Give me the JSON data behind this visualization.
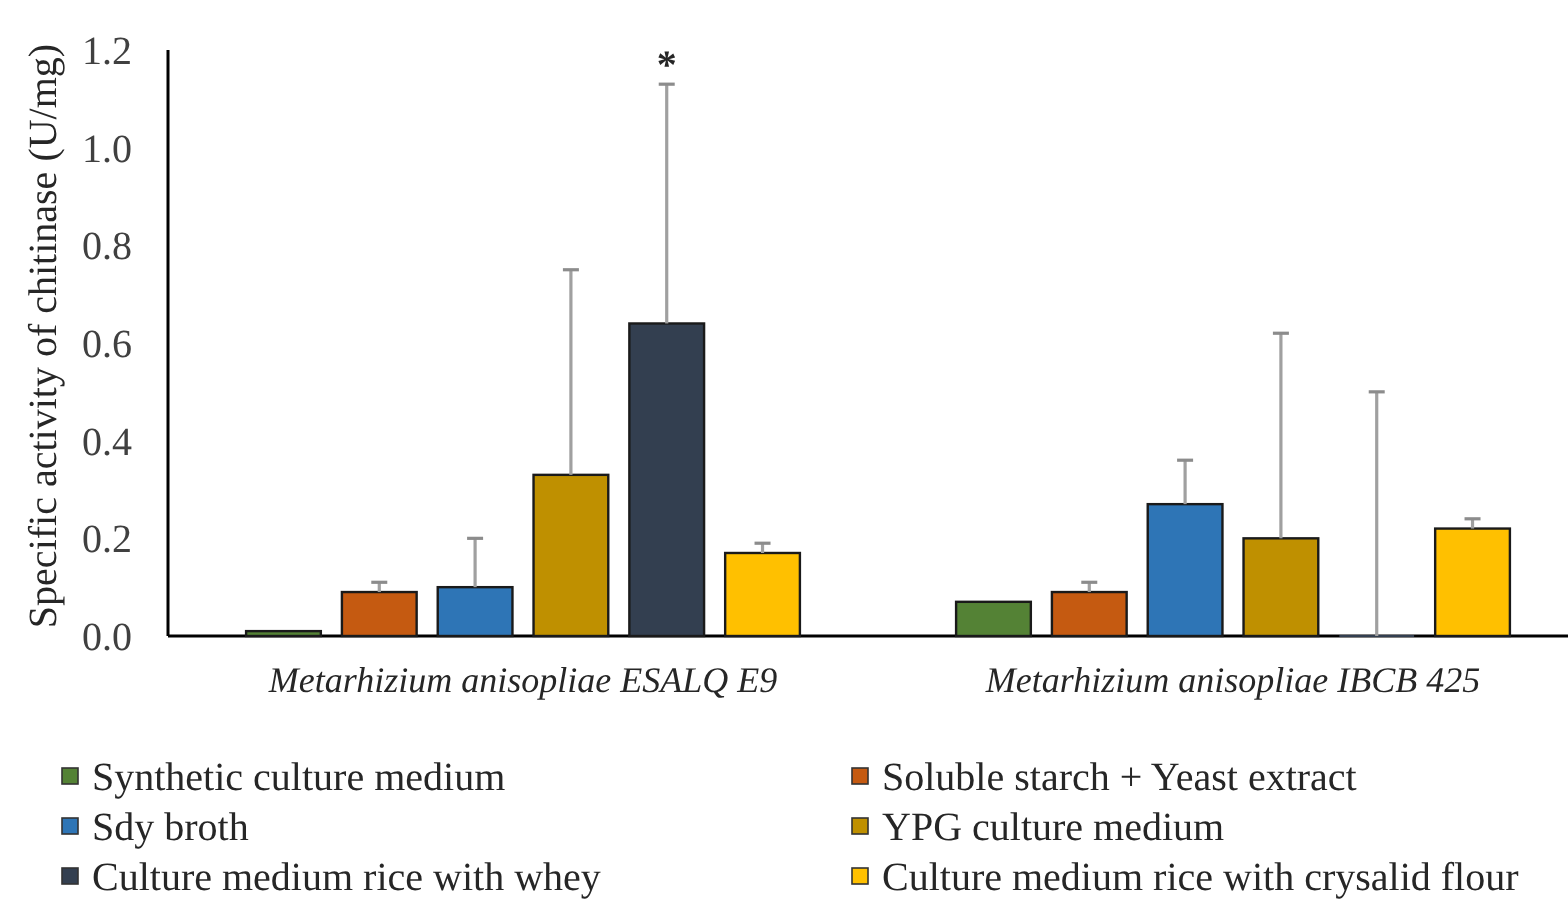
{
  "chart_data": {
    "type": "bar",
    "ylabel": "Specific activity of chitinase (U/mg)",
    "categories": [
      "Metarhizium anisopliae ESALQ E9",
      "Metarhizium anisopliae IBCB 425"
    ],
    "series": [
      {
        "name": "Synthetic culture medium",
        "color": "#548235",
        "values": [
          0.01,
          0.07
        ],
        "errors": [
          null,
          null
        ]
      },
      {
        "name": "Soluble starch + Yeast extract",
        "color": "#c55a11",
        "values": [
          0.09,
          0.09
        ],
        "errors": [
          [
            0.09,
            0.11
          ],
          [
            0.09,
            0.11
          ]
        ]
      },
      {
        "name": "Sdy broth",
        "color": "#2e75b6",
        "values": [
          0.1,
          0.27
        ],
        "errors": [
          [
            0.1,
            0.2
          ],
          [
            0.27,
            0.36
          ]
        ]
      },
      {
        "name": "YPG culture medium",
        "color": "#bf9000",
        "values": [
          0.33,
          0.2
        ],
        "errors": [
          [
            0.33,
            0.75
          ],
          [
            0.2,
            0.62
          ]
        ]
      },
      {
        "name": "Culture medium rice with whey",
        "color": "#333f50",
        "values": [
          0.64,
          0
        ],
        "errors": [
          [
            0.64,
            1.13
          ],
          [
            0,
            0.5
          ]
        ]
      },
      {
        "name": "Culture medium rice with crysalid flour",
        "color": "#ffc000",
        "values": [
          0.17,
          0.22
        ],
        "errors": [
          [
            0.17,
            0.19
          ],
          [
            0.22,
            0.24
          ]
        ]
      }
    ],
    "ylim": [
      0,
      1.2
    ],
    "yticks": [
      {
        "value": 0,
        "label": "0.0"
      },
      0.2,
      0.4,
      0.6,
      0.8,
      {
        "value": 1,
        "label": "1.0"
      },
      1.2
    ],
    "legend": "bottom",
    "annotations": [
      "*"
    ]
  }
}
